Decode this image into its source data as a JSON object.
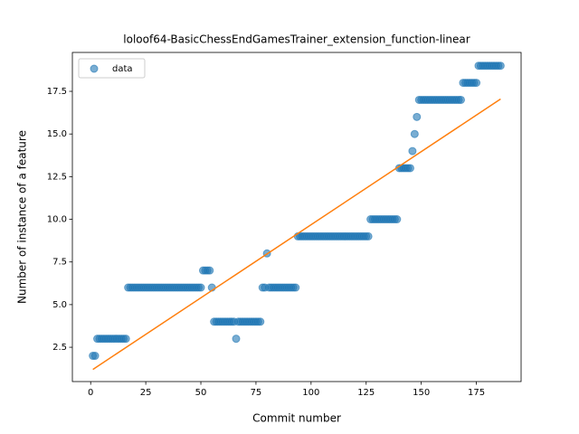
{
  "chart_data": {
    "type": "scatter",
    "title": "loloof64-BasicChessEndGamesTrainer_extension_function-linear",
    "x_label": "Commit number",
    "y_label": "Number of instance of a feature",
    "xlim": [
      -8.3,
      195.3
    ],
    "ylim": [
      0.49,
      19.78
    ],
    "xticks": [
      0,
      25,
      50,
      75,
      100,
      125,
      150,
      175
    ],
    "yticks": [
      2.5,
      {
        "value": 5,
        "label": "5.0"
      },
      7.5,
      {
        "value": 10,
        "label": "10.0"
      },
      12.5,
      {
        "value": 15,
        "label": "15.0"
      },
      17.5
    ],
    "legend": "upper left",
    "series": [
      {
        "name": "data",
        "color": "#1f77b4",
        "x": [
          1,
          2,
          3,
          4,
          5,
          6,
          7,
          8,
          9,
          10,
          11,
          12,
          13,
          14,
          15,
          16,
          17,
          18,
          19,
          20,
          21,
          22,
          23,
          24,
          25,
          26,
          27,
          28,
          29,
          30,
          31,
          32,
          33,
          34,
          35,
          36,
          37,
          38,
          39,
          40,
          41,
          42,
          43,
          44,
          45,
          46,
          47,
          48,
          49,
          50,
          51,
          52,
          53,
          54,
          55,
          56,
          57,
          58,
          59,
          60,
          61,
          62,
          63,
          64,
          65,
          66,
          67,
          68,
          69,
          70,
          71,
          72,
          73,
          74,
          75,
          76,
          77,
          78,
          79,
          80,
          81,
          82,
          83,
          84,
          85,
          86,
          87,
          88,
          89,
          90,
          91,
          92,
          93,
          94,
          95,
          96,
          97,
          98,
          99,
          100,
          101,
          102,
          103,
          104,
          105,
          106,
          107,
          108,
          109,
          110,
          111,
          112,
          113,
          114,
          115,
          116,
          117,
          118,
          119,
          120,
          121,
          122,
          123,
          124,
          125,
          126,
          127,
          128,
          129,
          130,
          131,
          132,
          133,
          134,
          135,
          136,
          137,
          138,
          139,
          140,
          141,
          142,
          143,
          144,
          145,
          146,
          147,
          148,
          149,
          150,
          151,
          152,
          153,
          154,
          155,
          156,
          157,
          158,
          159,
          160,
          161,
          162,
          163,
          164,
          165,
          166,
          167,
          168,
          169,
          170,
          171,
          172,
          173,
          174,
          175,
          176,
          177,
          178,
          179,
          180,
          181,
          182,
          183,
          184,
          185,
          186
        ],
        "values": [
          2,
          2,
          3,
          3,
          3,
          3,
          3,
          3,
          3,
          3,
          3,
          3,
          3,
          3,
          3,
          3,
          6,
          6,
          6,
          6,
          6,
          6,
          6,
          6,
          6,
          6,
          6,
          6,
          6,
          6,
          6,
          6,
          6,
          6,
          6,
          6,
          6,
          6,
          6,
          6,
          6,
          6,
          6,
          6,
          6,
          6,
          6,
          6,
          6,
          6,
          7,
          7,
          7,
          7,
          6,
          4,
          4,
          4,
          4,
          4,
          4,
          4,
          4,
          4,
          4,
          3,
          4,
          4,
          4,
          4,
          4,
          4,
          4,
          4,
          4,
          4,
          4,
          6,
          6,
          8,
          6,
          6,
          6,
          6,
          6,
          6,
          6,
          6,
          6,
          6,
          6,
          6,
          6,
          9,
          9,
          9,
          9,
          9,
          9,
          9,
          9,
          9,
          9,
          9,
          9,
          9,
          9,
          9,
          9,
          9,
          9,
          9,
          9,
          9,
          9,
          9,
          9,
          9,
          9,
          9,
          9,
          9,
          9,
          9,
          9,
          9,
          10,
          10,
          10,
          10,
          10,
          10,
          10,
          10,
          10,
          10,
          10,
          10,
          10,
          13,
          13,
          13,
          13,
          13,
          13,
          14,
          15,
          16,
          17,
          17,
          17,
          17,
          17,
          17,
          17,
          17,
          17,
          17,
          17,
          17,
          17,
          17,
          17,
          17,
          17,
          17,
          17,
          17,
          18,
          18,
          18,
          18,
          18,
          18,
          18,
          19,
          19,
          19,
          19,
          19,
          19,
          19,
          19,
          19,
          19,
          19
        ]
      }
    ],
    "fit_line": {
      "color": "#ff7f0e",
      "x": [
        1,
        186
      ],
      "values": [
        1.2,
        17.05
      ]
    }
  }
}
